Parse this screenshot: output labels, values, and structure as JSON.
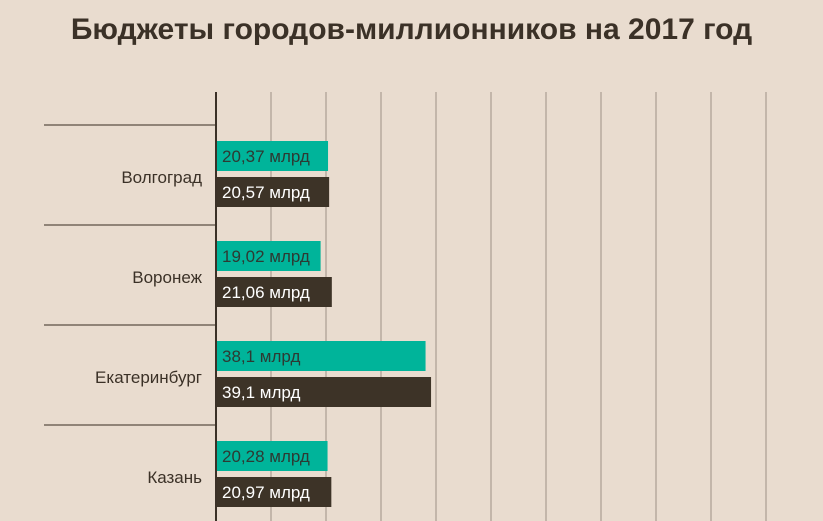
{
  "chart_data": {
    "type": "bar",
    "orientation": "horizontal",
    "title": "Бюджеты городов-миллионников на 2017 год",
    "categories": [
      "Волгоград",
      "Воронеж",
      "Екатеринбург",
      "Казань"
    ],
    "series": [
      {
        "color": "#00b49a",
        "values": [
          20.37,
          19.02,
          38.1,
          20.28
        ],
        "labels": [
          "20,37 млрд",
          "19,02 млрд",
          "38,1 млрд",
          "20,28 млрд"
        ]
      },
      {
        "color": "#3d3327",
        "values": [
          20.57,
          21.06,
          39.1,
          20.97
        ],
        "labels": [
          "20,57 млрд",
          "21,06 млрд",
          "39,1 млрд",
          "20,97 млрд"
        ]
      }
    ],
    "xlim": [
      0,
      100
    ],
    "grid": true
  }
}
